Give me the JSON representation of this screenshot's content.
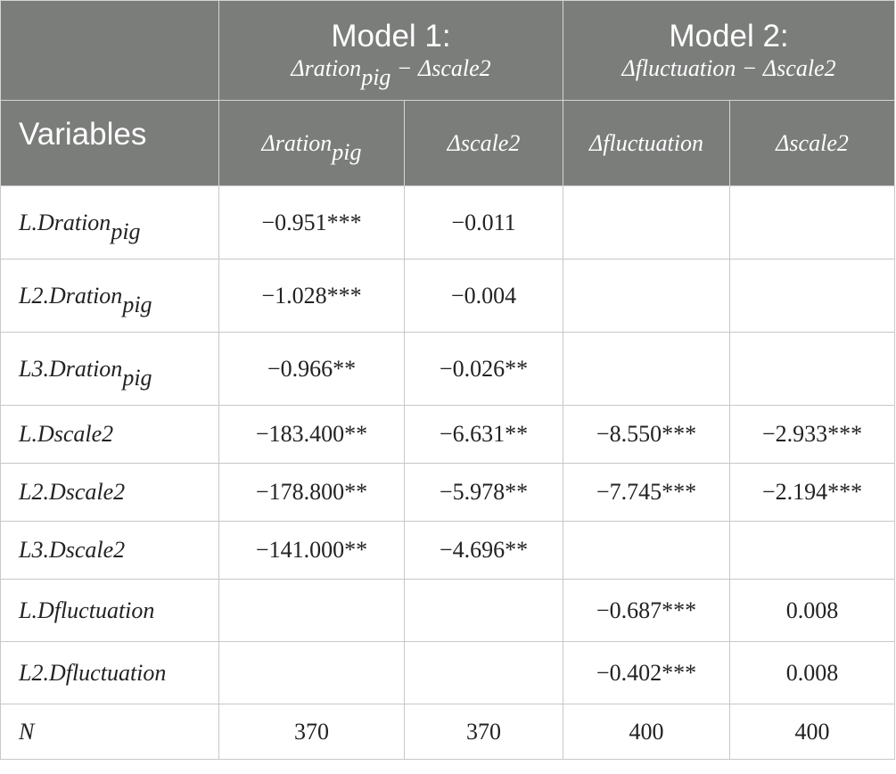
{
  "header": {
    "variables_label": "Variables",
    "model1": {
      "title": "Model 1:",
      "subtitle_a": "Δration",
      "subtitle_a_sub": "pig",
      "subtitle_b": " − Δscale2"
    },
    "model2": {
      "title": "Model 2:",
      "subtitle": "Δfluctuation − Δscale2"
    },
    "subcols": [
      {
        "main": "Δration",
        "sub": "pig"
      },
      {
        "main": "Δscale2",
        "sub": ""
      },
      {
        "main": "Δfluctuation",
        "sub": ""
      },
      {
        "main": "Δscale2",
        "sub": ""
      }
    ]
  },
  "rows": [
    {
      "var": "L.Dration",
      "var_sub": "pig",
      "values": [
        "−0.951***",
        "−0.011",
        "",
        ""
      ]
    },
    {
      "var": "L2.Dration",
      "var_sub": "pig",
      "values": [
        "−1.028***",
        "−0.004",
        "",
        ""
      ]
    },
    {
      "var": "L3.Dration",
      "var_sub": "pig",
      "values": [
        "−0.966**",
        "−0.026**",
        "",
        ""
      ]
    },
    {
      "var": "L.Dscale2",
      "var_sub": "",
      "values": [
        "−183.400**",
        "−6.631**",
        "−8.550***",
        "−2.933***"
      ]
    },
    {
      "var": "L2.Dscale2",
      "var_sub": "",
      "values": [
        "−178.800**",
        "−5.978**",
        "−7.745***",
        "−2.194***"
      ]
    },
    {
      "var": "L3.Dscale2",
      "var_sub": "",
      "values": [
        "−141.000**",
        "−4.696**",
        "",
        ""
      ]
    },
    {
      "var": "L.Dfluctuation",
      "var_sub": "",
      "values": [
        "",
        "",
        "−0.687***",
        "0.008"
      ]
    },
    {
      "var": "L2.Dfluctuation",
      "var_sub": "",
      "values": [
        "",
        "",
        "−0.402***",
        "0.008"
      ]
    },
    {
      "var": "N",
      "var_sub": "",
      "values": [
        "370",
        "370",
        "400",
        "400"
      ]
    }
  ]
}
